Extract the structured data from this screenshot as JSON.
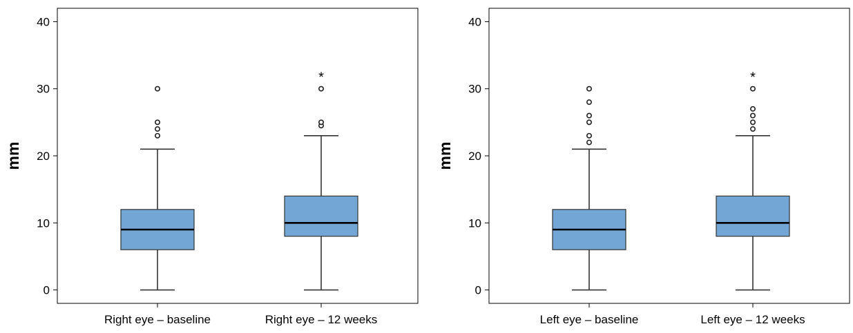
{
  "chart_data": [
    {
      "type": "boxplot",
      "ylabel": "mm",
      "ylim": [
        -2,
        42
      ],
      "yticks": [
        0,
        10,
        20,
        30,
        40
      ],
      "box_color": "#74a6d5",
      "categories": [
        "Right eye – baseline",
        "Right eye – 12 weeks"
      ],
      "boxes": [
        {
          "whisker_low": 0,
          "q1": 6,
          "median": 9,
          "q3": 12,
          "whisker_high": 21,
          "outliers": [
            23,
            24,
            25,
            30
          ],
          "extremes": []
        },
        {
          "whisker_low": 0,
          "q1": 8,
          "median": 10,
          "q3": 14,
          "whisker_high": 23,
          "outliers": [
            24.5,
            25,
            30
          ],
          "extremes": [
            32
          ]
        }
      ]
    },
    {
      "type": "boxplot",
      "ylabel": "mm",
      "ylim": [
        -2,
        42
      ],
      "yticks": [
        0,
        10,
        20,
        30,
        40
      ],
      "box_color": "#74a6d5",
      "categories": [
        "Left eye – baseline",
        "Left eye – 12 weeks"
      ],
      "boxes": [
        {
          "whisker_low": 0,
          "q1": 6,
          "median": 9,
          "q3": 12,
          "whisker_high": 21,
          "outliers": [
            22,
            23,
            25,
            26,
            28,
            30
          ],
          "extremes": []
        },
        {
          "whisker_low": 0,
          "q1": 8,
          "median": 10,
          "q3": 14,
          "whisker_high": 23,
          "outliers": [
            24,
            25,
            26,
            27,
            30
          ],
          "extremes": [
            32
          ]
        }
      ]
    }
  ]
}
